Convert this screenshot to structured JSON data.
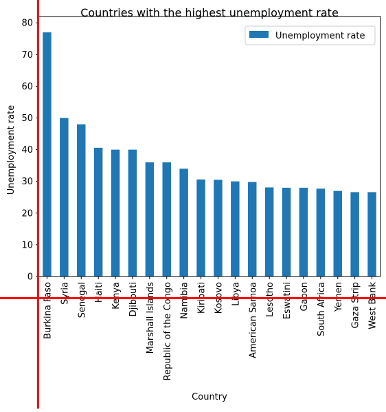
{
  "chart_data": {
    "type": "bar",
    "title": "Countries with the highest unemployment rate",
    "xlabel": "Country",
    "ylabel": "Unemployment rate",
    "ylim": [
      0,
      82
    ],
    "yticks": [
      0,
      10,
      20,
      30,
      40,
      50,
      60,
      70,
      80
    ],
    "grid": false,
    "legend_position": "top-right",
    "categories": [
      "Burkina Faso",
      "Syria",
      "Senegal",
      "Haiti",
      "Kenya",
      "Djibouti",
      "Marshall Islands",
      "Republic of the Congo",
      "Namibia",
      "Kiribati",
      "Kosovo",
      "Libya",
      "American Samoa",
      "Lesotho",
      "Eswatini",
      "Gabon",
      "South Africa",
      "Yemen",
      "Gaza Strip",
      "West Bank"
    ],
    "series": [
      {
        "name": "Unemployment rate",
        "values": [
          77,
          50,
          48,
          40.6,
          40,
          40,
          36,
          36,
          34,
          30.6,
          30.5,
          30,
          29.8,
          28.1,
          28,
          28,
          27.7,
          27,
          26.6,
          26.6
        ]
      }
    ]
  },
  "colors": {
    "bar": "#1f77b4",
    "overlay": "#ff0000"
  }
}
